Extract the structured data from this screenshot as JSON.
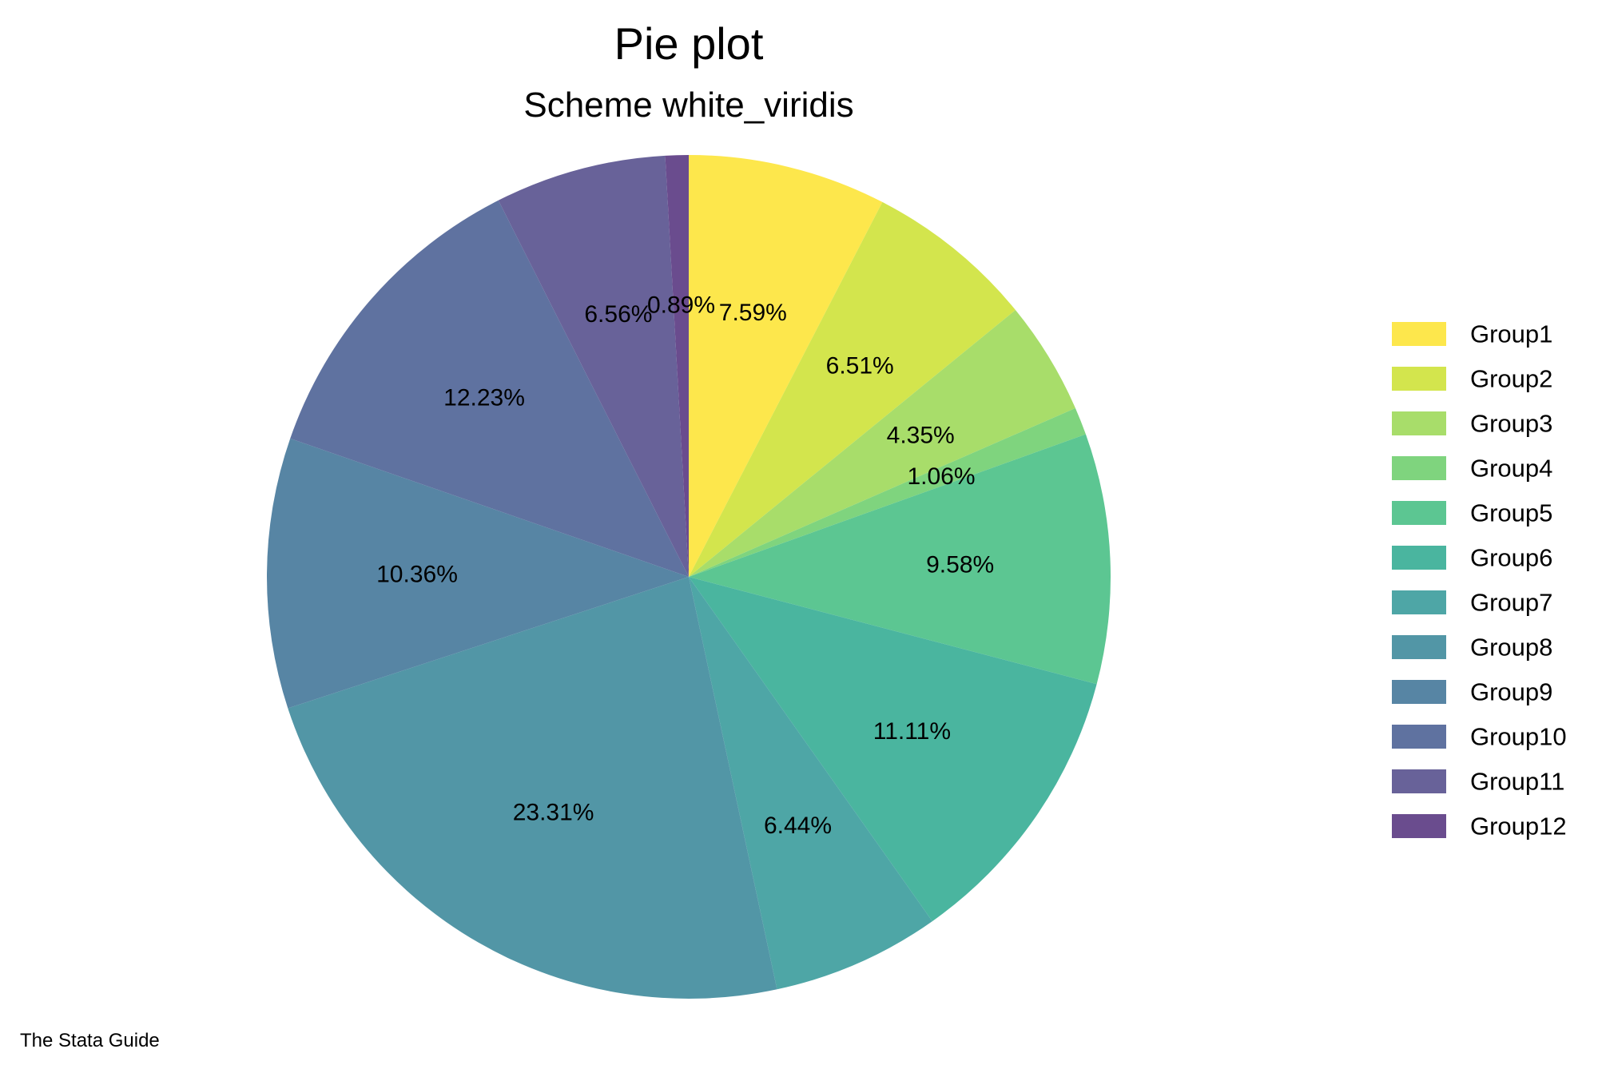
{
  "chart_data": {
    "type": "pie",
    "title": "Pie plot",
    "subtitle": "Scheme white_viridis",
    "note": "The Stata Guide",
    "legend_position": "right",
    "start_angle": "12 o'clock, clockwise",
    "categories": [
      "Group1",
      "Group2",
      "Group3",
      "Group4",
      "Group5",
      "Group6",
      "Group7",
      "Group8",
      "Group9",
      "Group10",
      "Group11",
      "Group12"
    ],
    "values": [
      7.59,
      6.51,
      4.35,
      1.06,
      9.58,
      11.11,
      6.44,
      23.31,
      10.36,
      12.23,
      6.56,
      0.89
    ],
    "labels": [
      "7.59%",
      "6.51%",
      "4.35%",
      "1.06%",
      "9.58%",
      "11.11%",
      "6.44%",
      "23.31%",
      "10.36%",
      "12.23%",
      "6.56%",
      "0.89%"
    ],
    "colors": [
      "#fde74c",
      "#d3e54d",
      "#a8dd6a",
      "#7fd47e",
      "#5cc692",
      "#4ab59f",
      "#4ea6a6",
      "#5296a6",
      "#5785a4",
      "#5f72a0",
      "#686299",
      "#6a4c8e"
    ]
  }
}
